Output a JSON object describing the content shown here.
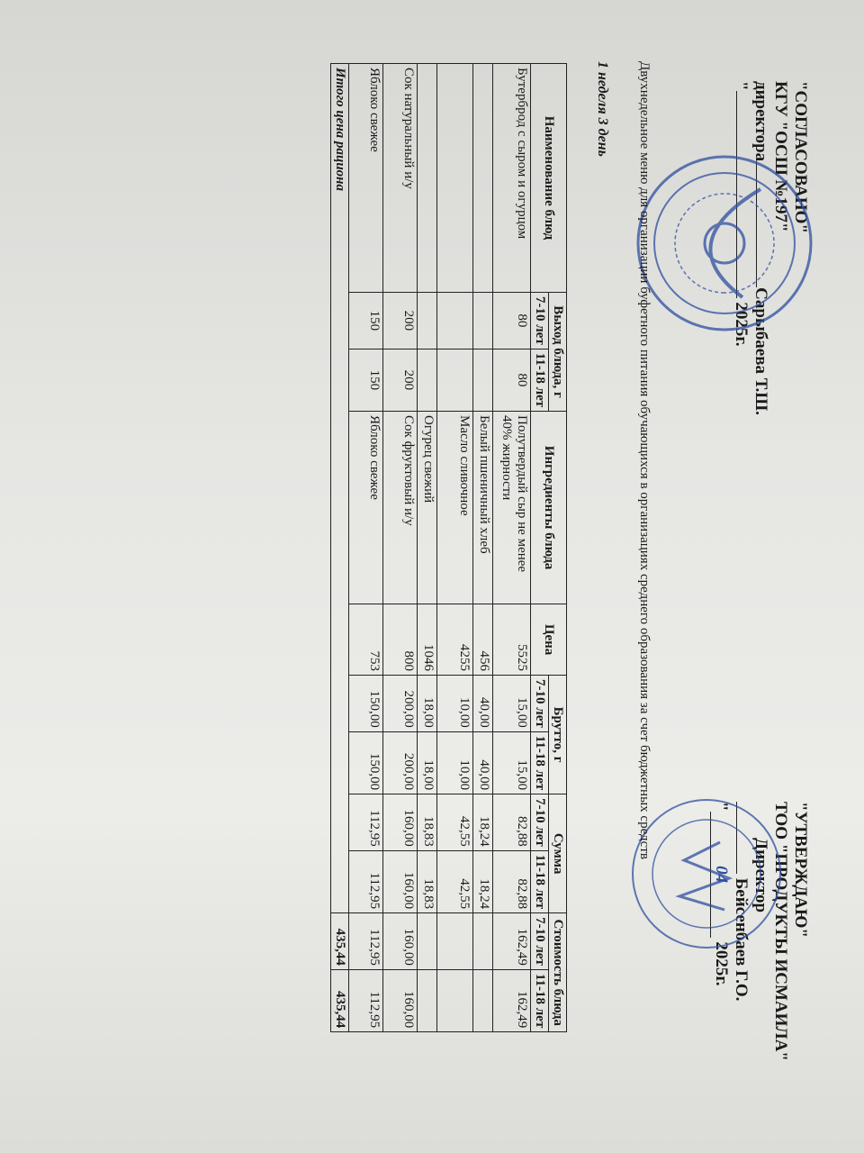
{
  "approval_left": {
    "line1": "\"СОГЛАСОВАНО\"",
    "line2": "КГУ \"ОСШ №197\"",
    "line3": "директора",
    "signer": "Сарыбаева Т.Ш.",
    "date_prefix": "\"",
    "year": "2025г."
  },
  "approval_right": {
    "line1": "\"УТВЕРЖДАЮ\"",
    "line2": "ТОО \"ПРОДУКТЫ ИСМАИЛА\"",
    "line3": "Директор",
    "signer": "Бейсенбаев Г.О.",
    "date_prefix": "\"",
    "date_handwritten": "04",
    "year": "2025г."
  },
  "title": "Двухнедельное меню для организации буфетного питания обучающихся в организациях среднего образования за счет бюджетных средств",
  "subtitle": "1 неделя  3 день",
  "table": {
    "headers": {
      "name": "Наименование блюд",
      "output": "Выход блюда, г",
      "ingredients": "Ингредиенты блюда",
      "price": "Цена",
      "brutto": "Брутто, г",
      "sum": "Сумма",
      "cost": "Стоимость блюда",
      "age1": "7-10 лет",
      "age2": "11-18 лет"
    },
    "rows": [
      {
        "name": "Бутерброд с сыром и огурцом",
        "out1": "80",
        "out2": "80",
        "ingredient": "Полутвердый сыр не менее 40% жирности",
        "price": "5525",
        "b1": "15,00",
        "b2": "15,00",
        "s1": "82,88",
        "s2": "82,88",
        "c1": "162,49",
        "c2": "162,49"
      },
      {
        "name": "",
        "out1": "",
        "out2": "",
        "ingredient": "Белый пшеничный хлеб",
        "price": "456",
        "b1": "40,00",
        "b2": "40,00",
        "s1": "18,24",
        "s2": "18,24",
        "c1": "",
        "c2": ""
      },
      {
        "name": "",
        "out1": "",
        "out2": "",
        "ingredient": "Масло сливочное",
        "price": "4255",
        "b1": "10,00",
        "b2": "10,00",
        "s1": "42,55",
        "s2": "42,55",
        "c1": "",
        "c2": ""
      },
      {
        "name": "",
        "out1": "",
        "out2": "",
        "ingredient": "Огурец свежий",
        "price": "1046",
        "b1": "18,00",
        "b2": "18,00",
        "s1": "18,83",
        "s2": "18,83",
        "c1": "",
        "c2": ""
      },
      {
        "name": "Сок натуральный и/у",
        "out1": "200",
        "out2": "200",
        "ingredient": "Сок фруктовый и/у",
        "price": "800",
        "b1": "200,00",
        "b2": "200,00",
        "s1": "160,00",
        "s2": "160,00",
        "c1": "160,00",
        "c2": "160,00"
      },
      {
        "name": "Яблоко свежее",
        "out1": "150",
        "out2": "150",
        "ingredient": "Яблоко свежее",
        "price": "753",
        "b1": "150,00",
        "b2": "150,00",
        "s1": "112,95",
        "s2": "112,95",
        "c1": "112,95",
        "c2": "112,95"
      }
    ],
    "total": {
      "label": "Итого цена рациона",
      "c1": "435,44",
      "c2": "435,44"
    }
  },
  "stamp_color": "#2e4f9e"
}
